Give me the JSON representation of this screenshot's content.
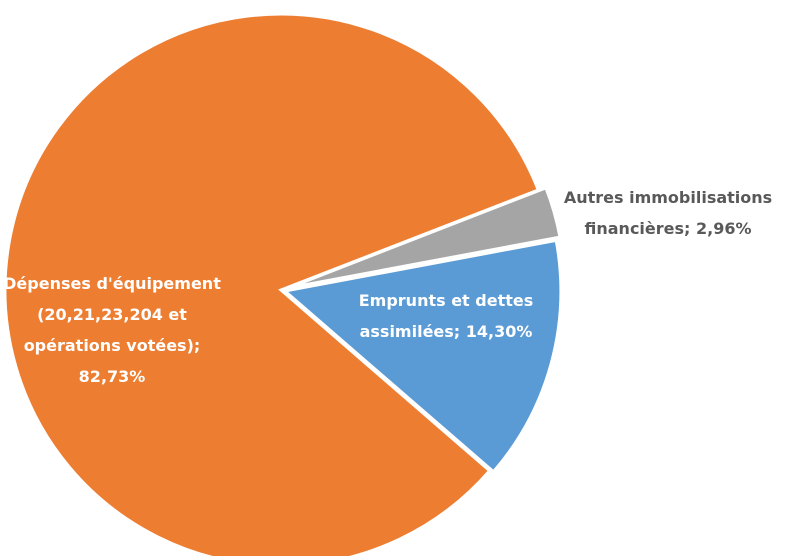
{
  "chart_data": {
    "type": "pie",
    "values": [
      82.73,
      2.96,
      14.3
    ],
    "value_labels": [
      "Dépenses d'équipement (20,21,23,204 et opérations votées); 82,73%",
      "Autres immobilisations financières; 2,96%",
      "Emprunts et dettes assimilées; 14,30%"
    ],
    "colors": [
      "#ED7D31",
      "#A5A5A5",
      "#5B9BD5"
    ]
  }
}
